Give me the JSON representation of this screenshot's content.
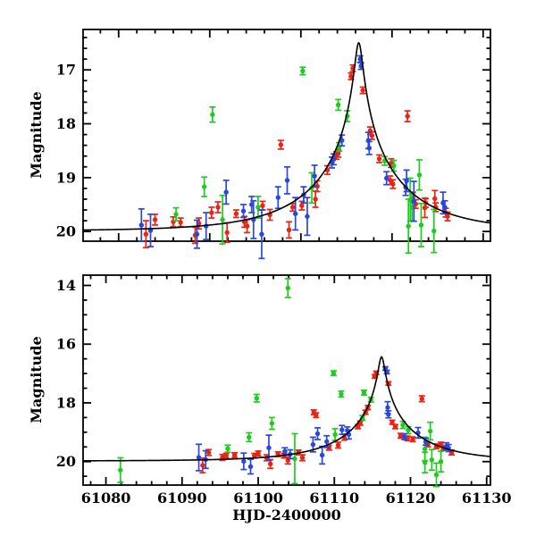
{
  "figure": {
    "background": "#ffffff",
    "x_axis_title": "HJD-2400000",
    "y_axis_title": "Magnitude",
    "colors": {
      "red": "#ee2211",
      "green": "#1ecc1e",
      "blue": "#2747e0",
      "model": "#000000"
    }
  },
  "chart_data": [
    {
      "id": "top-panel",
      "type": "scatter",
      "title": "",
      "xlabel": "",
      "ylabel": "Magnitude",
      "xlim": [
        61086.1,
        61130.8
      ],
      "ylim": [
        16.25,
        20.18
      ],
      "y_inverted": true,
      "grid": false,
      "x_ticks_major": [
        61090,
        61100,
        61110,
        61120,
        61130
      ],
      "x_tick_minor_step": 2,
      "y_ticks_major": [
        17,
        18,
        19,
        20
      ],
      "y_tick_minor_step": 0.2,
      "model": {
        "type": "paczynski-microlensing",
        "baseline_mag": 19.99,
        "t0": 61116.35,
        "tE": 10.0,
        "u0": 0.04
      },
      "series": [
        {
          "name": "red",
          "color_key": "red",
          "points": [
            [
              61093.0,
              20.05,
              0.25
            ],
            [
              61094.0,
              19.78,
              0.1
            ],
            [
              61096.0,
              19.82,
              0.09
            ],
            [
              61096.8,
              19.83,
              0.08
            ],
            [
              61098.4,
              20.07,
              0.15
            ],
            [
              61098.8,
              19.85,
              0.1
            ],
            [
              61100.2,
              19.65,
              0.1
            ],
            [
              61100.9,
              19.55,
              0.1
            ],
            [
              61101.9,
              20.02,
              0.18
            ],
            [
              61102.9,
              19.67,
              0.07
            ],
            [
              61103.8,
              19.82,
              0.1
            ],
            [
              61104.1,
              19.9,
              0.12
            ],
            [
              61105.8,
              19.52,
              0.08
            ],
            [
              61106.6,
              19.69,
              0.1
            ],
            [
              61107.8,
              18.39,
              0.08
            ],
            [
              61108.7,
              19.97,
              0.15
            ],
            [
              61109.1,
              19.55,
              0.07
            ],
            [
              61110.1,
              19.52,
              0.08
            ],
            [
              61111.8,
              19.16,
              0.1
            ],
            [
              61111.6,
              19.4,
              0.15
            ],
            [
              61112.9,
              18.86,
              0.08
            ],
            [
              61113.9,
              18.59,
              0.07
            ],
            [
              61114.1,
              18.55,
              0.07
            ],
            [
              61115.5,
              17.12,
              0.06
            ],
            [
              61115.7,
              16.97,
              0.06
            ],
            [
              61116.8,
              17.38,
              0.06
            ],
            [
              61117.6,
              18.13,
              0.07
            ],
            [
              61117.8,
              18.22,
              0.07
            ],
            [
              61118.6,
              18.65,
              0.07
            ],
            [
              61119.9,
              18.73,
              0.08
            ],
            [
              61119.8,
              19.05,
              0.08
            ],
            [
              61120.1,
              19.12,
              0.08
            ],
            [
              61121.7,
              17.86,
              0.1
            ],
            [
              61122.3,
              19.37,
              0.1
            ],
            [
              61122.6,
              19.49,
              0.08
            ],
            [
              61123.6,
              19.56,
              0.18
            ],
            [
              61123.7,
              19.47,
              0.08
            ],
            [
              61124.7,
              19.39,
              0.15
            ],
            [
              61124.8,
              19.55,
              0.08
            ],
            [
              61125.9,
              19.65,
              0.08
            ],
            [
              61126.1,
              19.72,
              0.08
            ]
          ]
        },
        {
          "name": "green",
          "color_key": "green",
          "points": [
            [
              61096.3,
              19.68,
              0.12
            ],
            [
              61099.4,
              19.17,
              0.18
            ],
            [
              61100.3,
              17.83,
              0.14
            ],
            [
              61101.4,
              19.78,
              0.45
            ],
            [
              61105.3,
              19.55,
              0.2
            ],
            [
              61110.2,
              17.02,
              0.07
            ],
            [
              61111.2,
              19.19,
              0.28
            ],
            [
              61114.1,
              17.65,
              0.1
            ],
            [
              61114.2,
              18.43,
              0.08
            ],
            [
              61115.1,
              17.86,
              0.1
            ],
            [
              61119.2,
              18.69,
              0.08
            ],
            [
              61120.2,
              18.78,
              0.1
            ],
            [
              61121.8,
              19.9,
              0.5
            ],
            [
              61122.0,
              19.41,
              0.4
            ],
            [
              61122.2,
              19.55,
              0.25
            ],
            [
              61123.0,
              18.95,
              0.28
            ],
            [
              61123.2,
              19.88,
              0.4
            ],
            [
              61124.6,
              19.99,
              0.4
            ]
          ]
        },
        {
          "name": "blue",
          "color_key": "blue",
          "points": [
            [
              61092.5,
              19.88,
              0.3
            ],
            [
              61093.5,
              19.98,
              0.3
            ],
            [
              61098.6,
              20.05,
              0.26
            ],
            [
              61099.6,
              19.9,
              0.25
            ],
            [
              61101.8,
              19.27,
              0.22
            ],
            [
              61103.7,
              19.62,
              0.12
            ],
            [
              61104.6,
              19.5,
              0.15
            ],
            [
              61104.8,
              19.78,
              0.35
            ],
            [
              61105.7,
              20.05,
              0.45
            ],
            [
              61107.5,
              19.37,
              0.2
            ],
            [
              61108.5,
              19.05,
              0.25
            ],
            [
              61109.4,
              19.67,
              0.3
            ],
            [
              61110.3,
              19.32,
              0.15
            ],
            [
              61110.7,
              19.72,
              0.35
            ],
            [
              61111.5,
              18.97,
              0.2
            ],
            [
              61113.4,
              18.72,
              0.1
            ],
            [
              61113.6,
              18.66,
              0.1
            ],
            [
              61114.5,
              18.31,
              0.1
            ],
            [
              61116.5,
              16.8,
              0.06
            ],
            [
              61116.6,
              16.93,
              0.06
            ],
            [
              61117.4,
              18.31,
              0.15
            ],
            [
              61117.5,
              18.45,
              0.12
            ],
            [
              61119.4,
              19.01,
              0.12
            ],
            [
              61121.5,
              19.18,
              0.15
            ],
            [
              61121.6,
              19.06,
              0.2
            ],
            [
              61122.4,
              19.44,
              0.37
            ],
            [
              61125.6,
              19.47,
              0.2
            ],
            [
              61125.8,
              19.55,
              0.12
            ]
          ]
        }
      ]
    },
    {
      "id": "bottom-panel",
      "type": "scatter",
      "title": "",
      "xlabel": "HJD-2400000",
      "ylabel": "Magnitude",
      "xlim": [
        61077.0,
        61130.5
      ],
      "ylim": [
        13.65,
        20.8
      ],
      "y_inverted": true,
      "grid": false,
      "x_ticks_major": [
        61080,
        61090,
        61100,
        61110,
        61120,
        61130
      ],
      "x_tick_minor_step": 2,
      "y_ticks_major": [
        14,
        16,
        18,
        20
      ],
      "y_tick_minor_step": 0.5,
      "model": {
        "type": "paczynski-microlensing",
        "baseline_mag": 19.98,
        "t0": 61116.2,
        "tE": 10.0,
        "u0": 0.038
      },
      "series": [
        {
          "name": "red",
          "color_key": "red",
          "points": [
            [
              61092.7,
              20.13,
              0.25
            ],
            [
              61093.5,
              19.69,
              0.1
            ],
            [
              61095.3,
              19.86,
              0.1
            ],
            [
              61095.8,
              19.8,
              0.08
            ],
            [
              61096.9,
              19.78,
              0.08
            ],
            [
              61099.5,
              19.8,
              0.08
            ],
            [
              61100.0,
              19.72,
              0.08
            ],
            [
              61101.1,
              19.87,
              0.1
            ],
            [
              61101.6,
              20.08,
              0.15
            ],
            [
              61102.6,
              19.75,
              0.08
            ],
            [
              61103.4,
              19.8,
              0.08
            ],
            [
              61103.9,
              19.96,
              0.12
            ],
            [
              61105.3,
              19.69,
              0.08
            ],
            [
              61105.8,
              19.87,
              0.1
            ],
            [
              61107.3,
              18.32,
              0.08
            ],
            [
              61107.6,
              18.42,
              0.08
            ],
            [
              61109.3,
              19.53,
              0.08
            ],
            [
              61110.5,
              19.44,
              0.1
            ],
            [
              61111.3,
              19.17,
              0.1
            ],
            [
              61113.1,
              18.81,
              0.07
            ],
            [
              61113.4,
              18.69,
              0.07
            ],
            [
              61114.1,
              18.32,
              0.07
            ],
            [
              61114.4,
              18.16,
              0.07
            ],
            [
              61115.3,
              17.1,
              0.06
            ],
            [
              61115.5,
              16.98,
              0.06
            ],
            [
              61117.1,
              17.34,
              0.06
            ],
            [
              61117.6,
              18.66,
              0.07
            ],
            [
              61118.0,
              18.81,
              0.07
            ],
            [
              61118.7,
              19.12,
              0.08
            ],
            [
              61119.6,
              19.21,
              0.08
            ],
            [
              61120.3,
              19.24,
              0.08
            ],
            [
              61121.5,
              17.86,
              0.1
            ],
            [
              61122.3,
              19.42,
              0.08
            ],
            [
              61123.4,
              19.48,
              0.08
            ],
            [
              61124.0,
              19.42,
              0.08
            ],
            [
              61124.3,
              19.54,
              0.08
            ],
            [
              61125.4,
              19.69,
              0.08
            ]
          ]
        },
        {
          "name": "green",
          "color_key": "green",
          "points": [
            [
              61081.9,
              20.29,
              0.42
            ],
            [
              61096.0,
              19.56,
              0.12
            ],
            [
              61098.8,
              19.17,
              0.15
            ],
            [
              61099.8,
              17.84,
              0.13
            ],
            [
              61101.8,
              18.7,
              0.2
            ],
            [
              61103.9,
              14.09,
              0.32
            ],
            [
              61104.8,
              19.9,
              0.85
            ],
            [
              61109.9,
              16.99,
              0.08
            ],
            [
              61110.9,
              17.7,
              0.1
            ],
            [
              61110.1,
              19.08,
              0.2
            ],
            [
              61113.7,
              18.51,
              0.08
            ],
            [
              61113.9,
              17.65,
              0.08
            ],
            [
              61114.8,
              17.89,
              0.08
            ],
            [
              61119.0,
              18.75,
              0.12
            ],
            [
              61119.7,
              18.93,
              0.12
            ],
            [
              61121.9,
              19.57,
              0.4
            ],
            [
              61121.9,
              20.03,
              0.35
            ],
            [
              61122.6,
              18.96,
              0.3
            ],
            [
              61122.8,
              19.94,
              0.35
            ],
            [
              61124.0,
              20.0,
              0.35
            ],
            [
              61123.4,
              20.45,
              0.4
            ]
          ]
        },
        {
          "name": "blue",
          "color_key": "blue",
          "points": [
            [
              61092.2,
              19.86,
              0.45
            ],
            [
              61093.1,
              19.93,
              0.3
            ],
            [
              61098.1,
              19.99,
              0.28
            ],
            [
              61099.0,
              20.17,
              0.25
            ],
            [
              61101.4,
              19.53,
              0.43
            ],
            [
              61103.5,
              19.65,
              0.12
            ],
            [
              61104.2,
              19.75,
              0.15
            ],
            [
              61107.2,
              19.42,
              0.25
            ],
            [
              61107.8,
              19.05,
              0.2
            ],
            [
              61108.4,
              19.78,
              0.3
            ],
            [
              61109.0,
              19.32,
              0.2
            ],
            [
              61111.0,
              18.92,
              0.15
            ],
            [
              61111.7,
              18.94,
              0.12
            ],
            [
              61111.9,
              19.08,
              0.15
            ],
            [
              61116.7,
              16.83,
              0.06
            ],
            [
              61116.9,
              16.95,
              0.06
            ],
            [
              61117.0,
              18.16,
              0.2
            ],
            [
              61117.1,
              18.39,
              0.12
            ],
            [
              61119.2,
              19.15,
              0.1
            ],
            [
              61121.0,
              19.02,
              0.18
            ],
            [
              61122.0,
              19.32,
              0.12
            ],
            [
              61124.7,
              19.48,
              0.12
            ],
            [
              61125.0,
              19.54,
              0.12
            ]
          ]
        }
      ]
    }
  ]
}
